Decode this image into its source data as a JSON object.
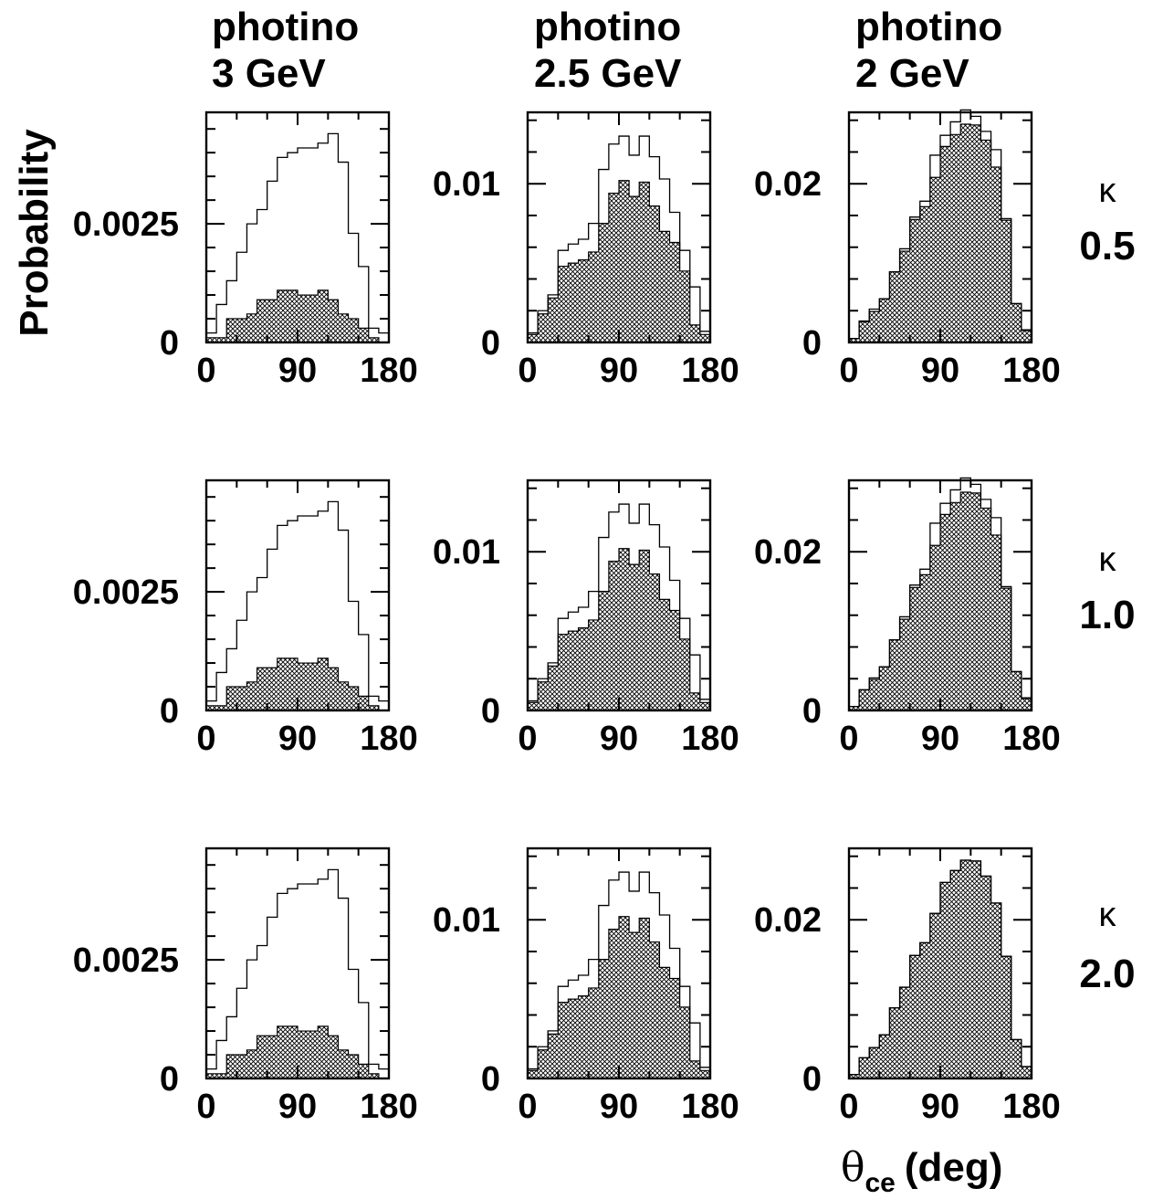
{
  "figure": {
    "ylabel": "Probability",
    "xlabel_symbol": "θ",
    "xlabel_sub": "ce",
    "xlabel_unit": "(deg)",
    "kappa_symbol": "κ"
  },
  "columns": [
    {
      "line1": "photino",
      "line2": "3 GeV"
    },
    {
      "line1": "photino",
      "line2": "2.5 GeV"
    },
    {
      "line1": "photino",
      "line2": "2 GeV"
    }
  ],
  "rows": [
    {
      "kappa": "0.5"
    },
    {
      "kappa": "1.0"
    },
    {
      "kappa": "2.0"
    }
  ],
  "chart_data": {
    "type": "histogram-grid",
    "x_bins": [
      0,
      10,
      20,
      30,
      40,
      50,
      60,
      70,
      80,
      90,
      100,
      110,
      120,
      130,
      140,
      150,
      160,
      170,
      180
    ],
    "xlim": [
      0,
      180
    ],
    "x_ticks": [
      "0",
      "90",
      "180"
    ],
    "columns": [
      {
        "ylim": [
          0,
          0.00485
        ],
        "y_ticks": [
          {
            "value": 0,
            "label": "0"
          },
          {
            "value": 0.0025,
            "label": "0.0025"
          }
        ],
        "open": [
          0.0002,
          0.0008,
          0.0013,
          0.0019,
          0.0025,
          0.0028,
          0.0034,
          0.0039,
          0.004,
          0.0041,
          0.0041,
          0.0042,
          0.0044,
          0.0038,
          0.0023,
          0.0016,
          0.0003,
          0.0002
        ],
        "hatched": [
          0.0001,
          0.0001,
          0.0005,
          0.0005,
          0.0006,
          0.0009,
          0.0009,
          0.0011,
          0.0011,
          0.001,
          0.001,
          0.0011,
          0.0009,
          0.0006,
          0.0005,
          0.0003,
          0.0001,
          0
        ],
        "rows": [
          "0.5",
          "1.0",
          "2.0"
        ]
      },
      {
        "ylim": [
          0,
          0.0145
        ],
        "y_ticks": [
          {
            "value": 0,
            "label": "0"
          },
          {
            "value": 0.01,
            "label": "0.01"
          }
        ],
        "open": [
          0.0006,
          0.002,
          0.003,
          0.0058,
          0.0062,
          0.0065,
          0.0075,
          0.0109,
          0.0125,
          0.013,
          0.0118,
          0.013,
          0.0117,
          0.0103,
          0.0082,
          0.0058,
          0.0035,
          0.0007
        ],
        "hatched": [
          0.0005,
          0.0018,
          0.0028,
          0.0048,
          0.005,
          0.0052,
          0.0057,
          0.0075,
          0.0094,
          0.0102,
          0.0092,
          0.0101,
          0.0086,
          0.007,
          0.0063,
          0.0045,
          0.0011,
          0.0005
        ],
        "rows": [
          "0.5",
          "1.0",
          "2.0"
        ]
      },
      {
        "ylim": [
          0,
          0.029
        ],
        "y_ticks": [
          {
            "value": 0,
            "label": "0"
          },
          {
            "value": 0.02,
            "label": "0.02"
          }
        ],
        "per_row": [
          {
            "open": [
              0.0005,
              0.0027,
              0.0042,
              0.0055,
              0.0089,
              0.0118,
              0.0158,
              0.0178,
              0.0236,
              0.0261,
              0.0278,
              0.0293,
              0.0285,
              0.0266,
              0.0243,
              0.0156,
              0.0049,
              0.0016
            ],
            "hatched": [
              0.0005,
              0.0026,
              0.0039,
              0.0055,
              0.0089,
              0.0115,
              0.0155,
              0.0171,
              0.0208,
              0.0247,
              0.0262,
              0.0275,
              0.0274,
              0.0255,
              0.0221,
              0.0154,
              0.0049,
              0.0015
            ]
          },
          {
            "open": [
              0.0005,
              0.0026,
              0.0041,
              0.0055,
              0.0089,
              0.0118,
              0.0158,
              0.0178,
              0.0236,
              0.0261,
              0.0278,
              0.0293,
              0.0285,
              0.0266,
              0.0243,
              0.0156,
              0.0049,
              0.0016
            ],
            "hatched": [
              0.0005,
              0.0026,
              0.0039,
              0.0055,
              0.0089,
              0.0115,
              0.0155,
              0.0171,
              0.0208,
              0.0247,
              0.0262,
              0.0275,
              0.0274,
              0.0255,
              0.0221,
              0.0154,
              0.0049,
              0.0015
            ]
          },
          {
            "open": [
              0.0005,
              0.0026,
              0.0039,
              0.0055,
              0.0089,
              0.0115,
              0.0155,
              0.0171,
              0.0208,
              0.0247,
              0.0262,
              0.0275,
              0.0274,
              0.0255,
              0.0221,
              0.0154,
              0.0049,
              0.0015
            ],
            "hatched": [
              0.0005,
              0.0026,
              0.0039,
              0.0055,
              0.0089,
              0.0115,
              0.0155,
              0.0171,
              0.0208,
              0.0247,
              0.0262,
              0.0275,
              0.0274,
              0.0255,
              0.0221,
              0.0154,
              0.0049,
              0.0015
            ]
          }
        ]
      }
    ]
  }
}
